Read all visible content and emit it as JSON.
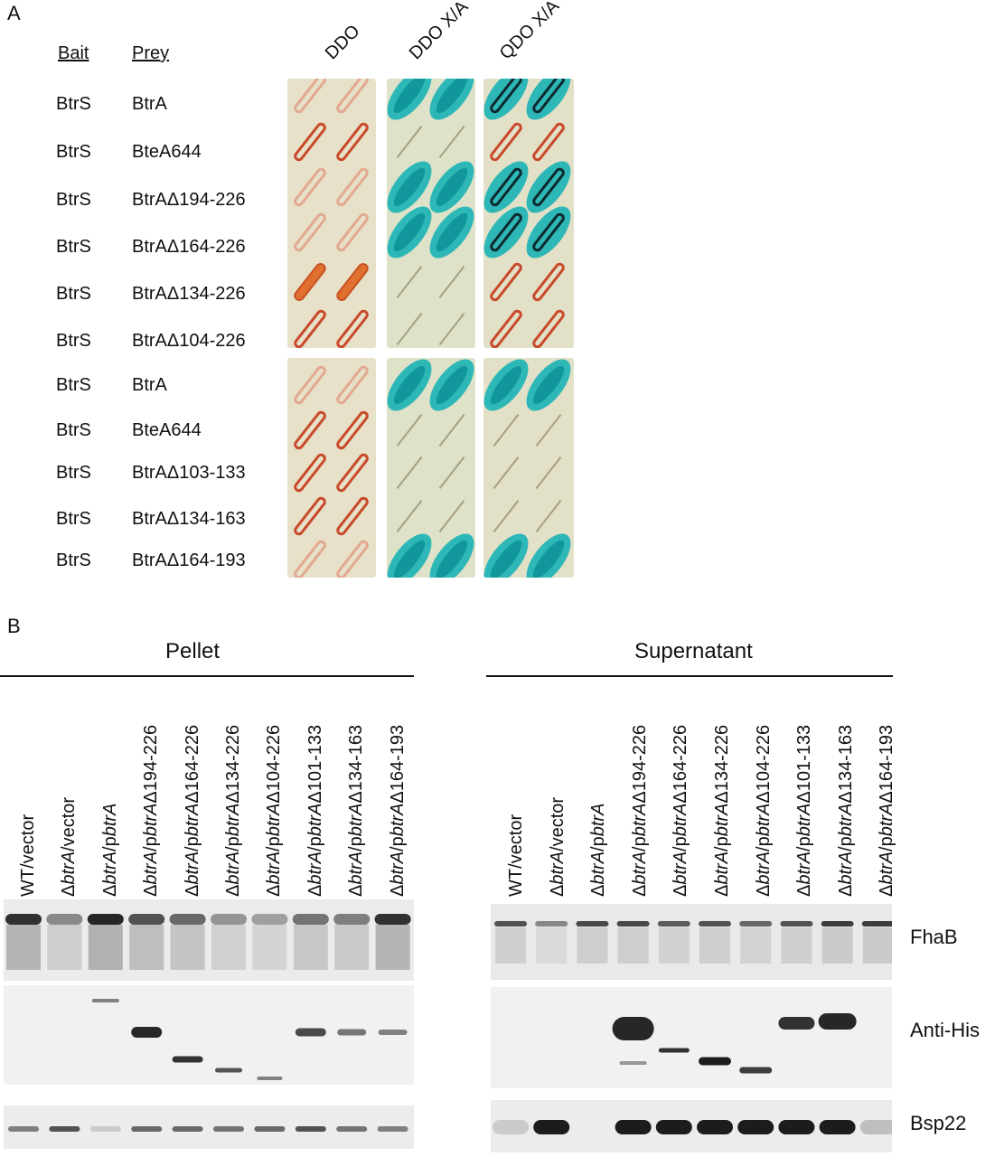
{
  "panelA": {
    "letter": "A",
    "bait_header": "Bait",
    "prey_header": "Prey",
    "media": [
      "DDO",
      "DDO X/A",
      "QDO X/A"
    ],
    "rows": [
      {
        "bait": "BtrS",
        "prey": "BtrA"
      },
      {
        "bait": "BtrS",
        "prey": "BteA644"
      },
      {
        "bait": "BtrS",
        "prey": "BtrAΔ194-226"
      },
      {
        "bait": "BtrS",
        "prey": "BtrAΔ164-226"
      },
      {
        "bait": "BtrS",
        "prey": "BtrAΔ134-226"
      },
      {
        "bait": "BtrS",
        "prey": "BtrAΔ104-226"
      },
      {
        "bait": "BtrS",
        "prey": "BtrA"
      },
      {
        "bait": "BtrS",
        "prey": "BteA644"
      },
      {
        "bait": "BtrS",
        "prey": "BtrAΔ103-133"
      },
      {
        "bait": "BtrS",
        "prey": "BtrAΔ134-163"
      },
      {
        "bait": "BtrS",
        "prey": "BtrAΔ164-193"
      }
    ]
  },
  "panelB": {
    "letter": "B",
    "pellet_title": "Pellet",
    "supernatant_title": "Supernatant",
    "lanes": [
      {
        "pre": "WT/vector",
        "ital": "",
        "mid": "",
        "ital2": "",
        "post": ""
      },
      {
        "pre": "Δ",
        "ital": "btrA",
        "mid": "/vector",
        "ital2": "",
        "post": ""
      },
      {
        "pre": "Δ",
        "ital": "btrA",
        "mid": "/p",
        "ital2": "btrA",
        "post": ""
      },
      {
        "pre": "Δ",
        "ital": "btrA",
        "mid": "/p",
        "ital2": "btrA",
        "post": "Δ194-226"
      },
      {
        "pre": "Δ",
        "ital": "btrA",
        "mid": "/p",
        "ital2": "btrA",
        "post": "Δ164-226"
      },
      {
        "pre": "Δ",
        "ital": "btrA",
        "mid": "/p",
        "ital2": "btrA",
        "post": "Δ134-226"
      },
      {
        "pre": "Δ",
        "ital": "btrA",
        "mid": "/p",
        "ital2": "btrA",
        "post": "Δ104-226"
      },
      {
        "pre": "Δ",
        "ital": "btrA",
        "mid": "/p",
        "ital2": "btrA",
        "post": "Δ101-133"
      },
      {
        "pre": "Δ",
        "ital": "btrA",
        "mid": "/p",
        "ital2": "btrA",
        "post": "Δ134-163"
      },
      {
        "pre": "Δ",
        "ital": "btrA",
        "mid": "/p",
        "ital2": "btrA",
        "post": "Δ164-193"
      }
    ],
    "antibodies": [
      "FhaB",
      "Anti-His",
      "Bsp22"
    ]
  }
}
